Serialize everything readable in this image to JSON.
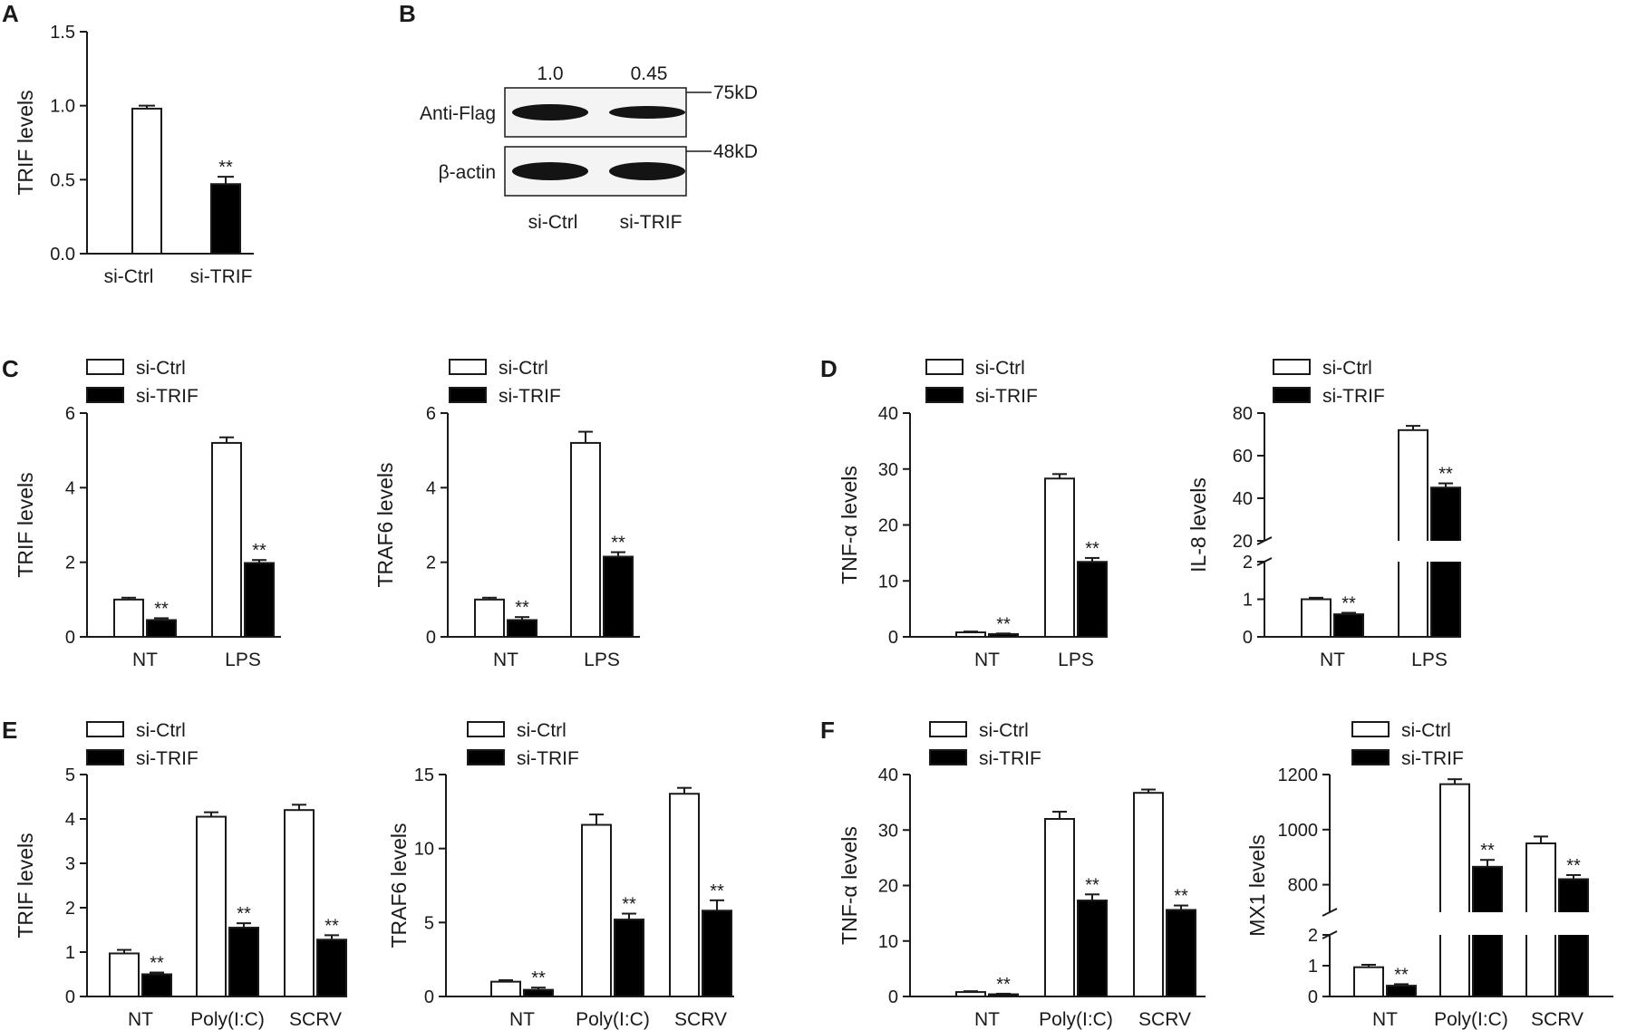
{
  "figure": {
    "background": "#ffffff",
    "fill_ctrl": "#ffffff",
    "fill_trif": "#000000",
    "stroke": "#1a1a1a"
  },
  "chart_data": [
    {
      "panel": "A",
      "type": "bar",
      "ylabel": "TRIF levels",
      "categories": [
        "si-Ctrl",
        "si-TRIF"
      ],
      "ylim": [
        0,
        1.5
      ],
      "yticks": [
        "0.0",
        "0.5",
        "1.0",
        "1.5"
      ],
      "series": [
        {
          "values": [
            0.98,
            0.47
          ],
          "errors": [
            0.02,
            0.05
          ],
          "color": "#ffffff"
        }
      ],
      "significance": [
        [
          "",
          "**"
        ]
      ]
    },
    {
      "panel": "C",
      "type": "bar",
      "ylabel": "TRIF levels",
      "categories": [
        "NT",
        "LPS"
      ],
      "ylim": [
        0,
        6
      ],
      "yticks": [
        "0",
        "2",
        "4",
        "6"
      ],
      "series": [
        {
          "name": "si-Ctrl",
          "values": [
            1.0,
            5.2
          ],
          "errors": [
            0.05,
            0.15
          ],
          "color": "#ffffff"
        },
        {
          "name": "si-TRIF",
          "values": [
            0.45,
            1.98
          ],
          "errors": [
            0.05,
            0.08
          ],
          "color": "#000000"
        }
      ],
      "significance": [
        [
          "",
          ""
        ],
        [
          "**",
          "**"
        ]
      ]
    },
    {
      "panel": "C2",
      "type": "bar",
      "ylabel": "TRAF6 levels",
      "categories": [
        "NT",
        "LPS"
      ],
      "ylim": [
        0,
        6
      ],
      "yticks": [
        "0",
        "2",
        "4",
        "6"
      ],
      "series": [
        {
          "name": "si-Ctrl",
          "values": [
            1.0,
            5.2
          ],
          "errors": [
            0.05,
            0.3
          ],
          "color": "#ffffff"
        },
        {
          "name": "si-TRIF",
          "values": [
            0.45,
            2.15
          ],
          "errors": [
            0.08,
            0.12
          ],
          "color": "#000000"
        }
      ],
      "significance": [
        [
          "",
          ""
        ],
        [
          "**",
          "**"
        ]
      ]
    },
    {
      "panel": "D",
      "type": "bar",
      "ylabel": "TNF-α levels",
      "categories": [
        "NT",
        "LPS"
      ],
      "ylim": [
        0,
        40
      ],
      "yticks": [
        "0",
        "10",
        "20",
        "30",
        "40"
      ],
      "series": [
        {
          "name": "si-Ctrl",
          "values": [
            0.8,
            28.3
          ],
          "errors": [
            0.15,
            0.8
          ],
          "color": "#ffffff"
        },
        {
          "name": "si-TRIF",
          "values": [
            0.5,
            13.4
          ],
          "errors": [
            0.1,
            0.7
          ],
          "color": "#000000"
        }
      ],
      "significance": [
        [
          "",
          ""
        ],
        [
          "**",
          "**"
        ]
      ]
    },
    {
      "panel": "D2",
      "type": "bar",
      "ylabel": "IL-8 levels",
      "categories": [
        "NT",
        "LPS"
      ],
      "y_axis_break": {
        "lower": [
          0,
          2
        ],
        "upper": [
          20,
          80
        ]
      },
      "yticks": [
        "0",
        "1",
        "2",
        "20",
        "40",
        "60",
        "80"
      ],
      "series": [
        {
          "name": "si-Ctrl",
          "values": [
            1.0,
            72
          ],
          "errors": [
            0.04,
            2
          ],
          "color": "#ffffff"
        },
        {
          "name": "si-TRIF",
          "values": [
            0.6,
            45
          ],
          "errors": [
            0.04,
            2
          ],
          "color": "#000000"
        }
      ],
      "significance": [
        [
          "",
          ""
        ],
        [
          "**",
          "**"
        ]
      ]
    },
    {
      "panel": "E",
      "type": "bar",
      "ylabel": "TRIF levels",
      "categories": [
        "NT",
        "Poly(I:C)",
        "SCRV"
      ],
      "ylim": [
        0,
        5
      ],
      "yticks": [
        "0",
        "1",
        "2",
        "3",
        "4",
        "5"
      ],
      "series": [
        {
          "name": "si-Ctrl",
          "values": [
            0.97,
            4.05,
            4.2
          ],
          "errors": [
            0.08,
            0.1,
            0.12
          ],
          "color": "#ffffff"
        },
        {
          "name": "si-TRIF",
          "values": [
            0.5,
            1.55,
            1.28
          ],
          "errors": [
            0.04,
            0.1,
            0.1
          ],
          "color": "#000000"
        }
      ],
      "significance": [
        [
          "",
          "",
          ""
        ],
        [
          "**",
          "**",
          "**"
        ]
      ]
    },
    {
      "panel": "E2",
      "type": "bar",
      "ylabel": "TRAF6 levels",
      "categories": [
        "NT",
        "Poly(I:C)",
        "SCRV"
      ],
      "ylim": [
        0,
        15
      ],
      "yticks": [
        "0",
        "5",
        "10",
        "15"
      ],
      "series": [
        {
          "name": "si-Ctrl",
          "values": [
            1.0,
            11.6,
            13.7
          ],
          "errors": [
            0.1,
            0.7,
            0.4
          ],
          "color": "#ffffff"
        },
        {
          "name": "si-TRIF",
          "values": [
            0.45,
            5.2,
            5.8
          ],
          "errors": [
            0.15,
            0.4,
            0.7
          ],
          "color": "#000000"
        }
      ],
      "significance": [
        [
          "",
          "",
          ""
        ],
        [
          "**",
          "**",
          "**"
        ]
      ]
    },
    {
      "panel": "F",
      "type": "bar",
      "ylabel": "TNF-α levels",
      "categories": [
        "NT",
        "Poly(I:C)",
        "SCRV"
      ],
      "ylim": [
        0,
        40
      ],
      "yticks": [
        "0",
        "10",
        "20",
        "30",
        "40"
      ],
      "series": [
        {
          "name": "si-Ctrl",
          "values": [
            0.8,
            32.0,
            36.7
          ],
          "errors": [
            0.15,
            1.3,
            0.6
          ],
          "color": "#ffffff"
        },
        {
          "name": "si-TRIF",
          "values": [
            0.4,
            17.3,
            15.6
          ],
          "errors": [
            0.1,
            1.1,
            0.8
          ],
          "color": "#000000"
        }
      ],
      "significance": [
        [
          "",
          "",
          ""
        ],
        [
          "**",
          "**",
          "**"
        ]
      ]
    },
    {
      "panel": "F2",
      "type": "bar",
      "ylabel": "MX1 levels",
      "categories": [
        "NT",
        "Poly(I:C)",
        "SCRV"
      ],
      "y_axis_break": {
        "lower": [
          0,
          2
        ],
        "upper": [
          700,
          1200
        ]
      },
      "yticks": [
        "0",
        "1",
        "2",
        "800",
        "1000",
        "1200"
      ],
      "series": [
        {
          "name": "si-Ctrl",
          "values": [
            0.95,
            1165,
            950
          ],
          "errors": [
            0.08,
            18,
            25
          ],
          "color": "#ffffff"
        },
        {
          "name": "si-TRIF",
          "values": [
            0.35,
            865,
            820
          ],
          "errors": [
            0.05,
            25,
            15
          ],
          "color": "#000000"
        }
      ],
      "significance": [
        [
          "",
          "",
          ""
        ],
        [
          "**",
          "**",
          "**"
        ]
      ]
    }
  ],
  "western_blot": {
    "panel": "B",
    "quantification": [
      "1.0",
      "0.45"
    ],
    "rows": [
      "Anti-Flag",
      "β-actin"
    ],
    "markers": [
      "75kD",
      "48kD"
    ],
    "lanes": [
      "si-Ctrl",
      "si-TRIF"
    ]
  }
}
